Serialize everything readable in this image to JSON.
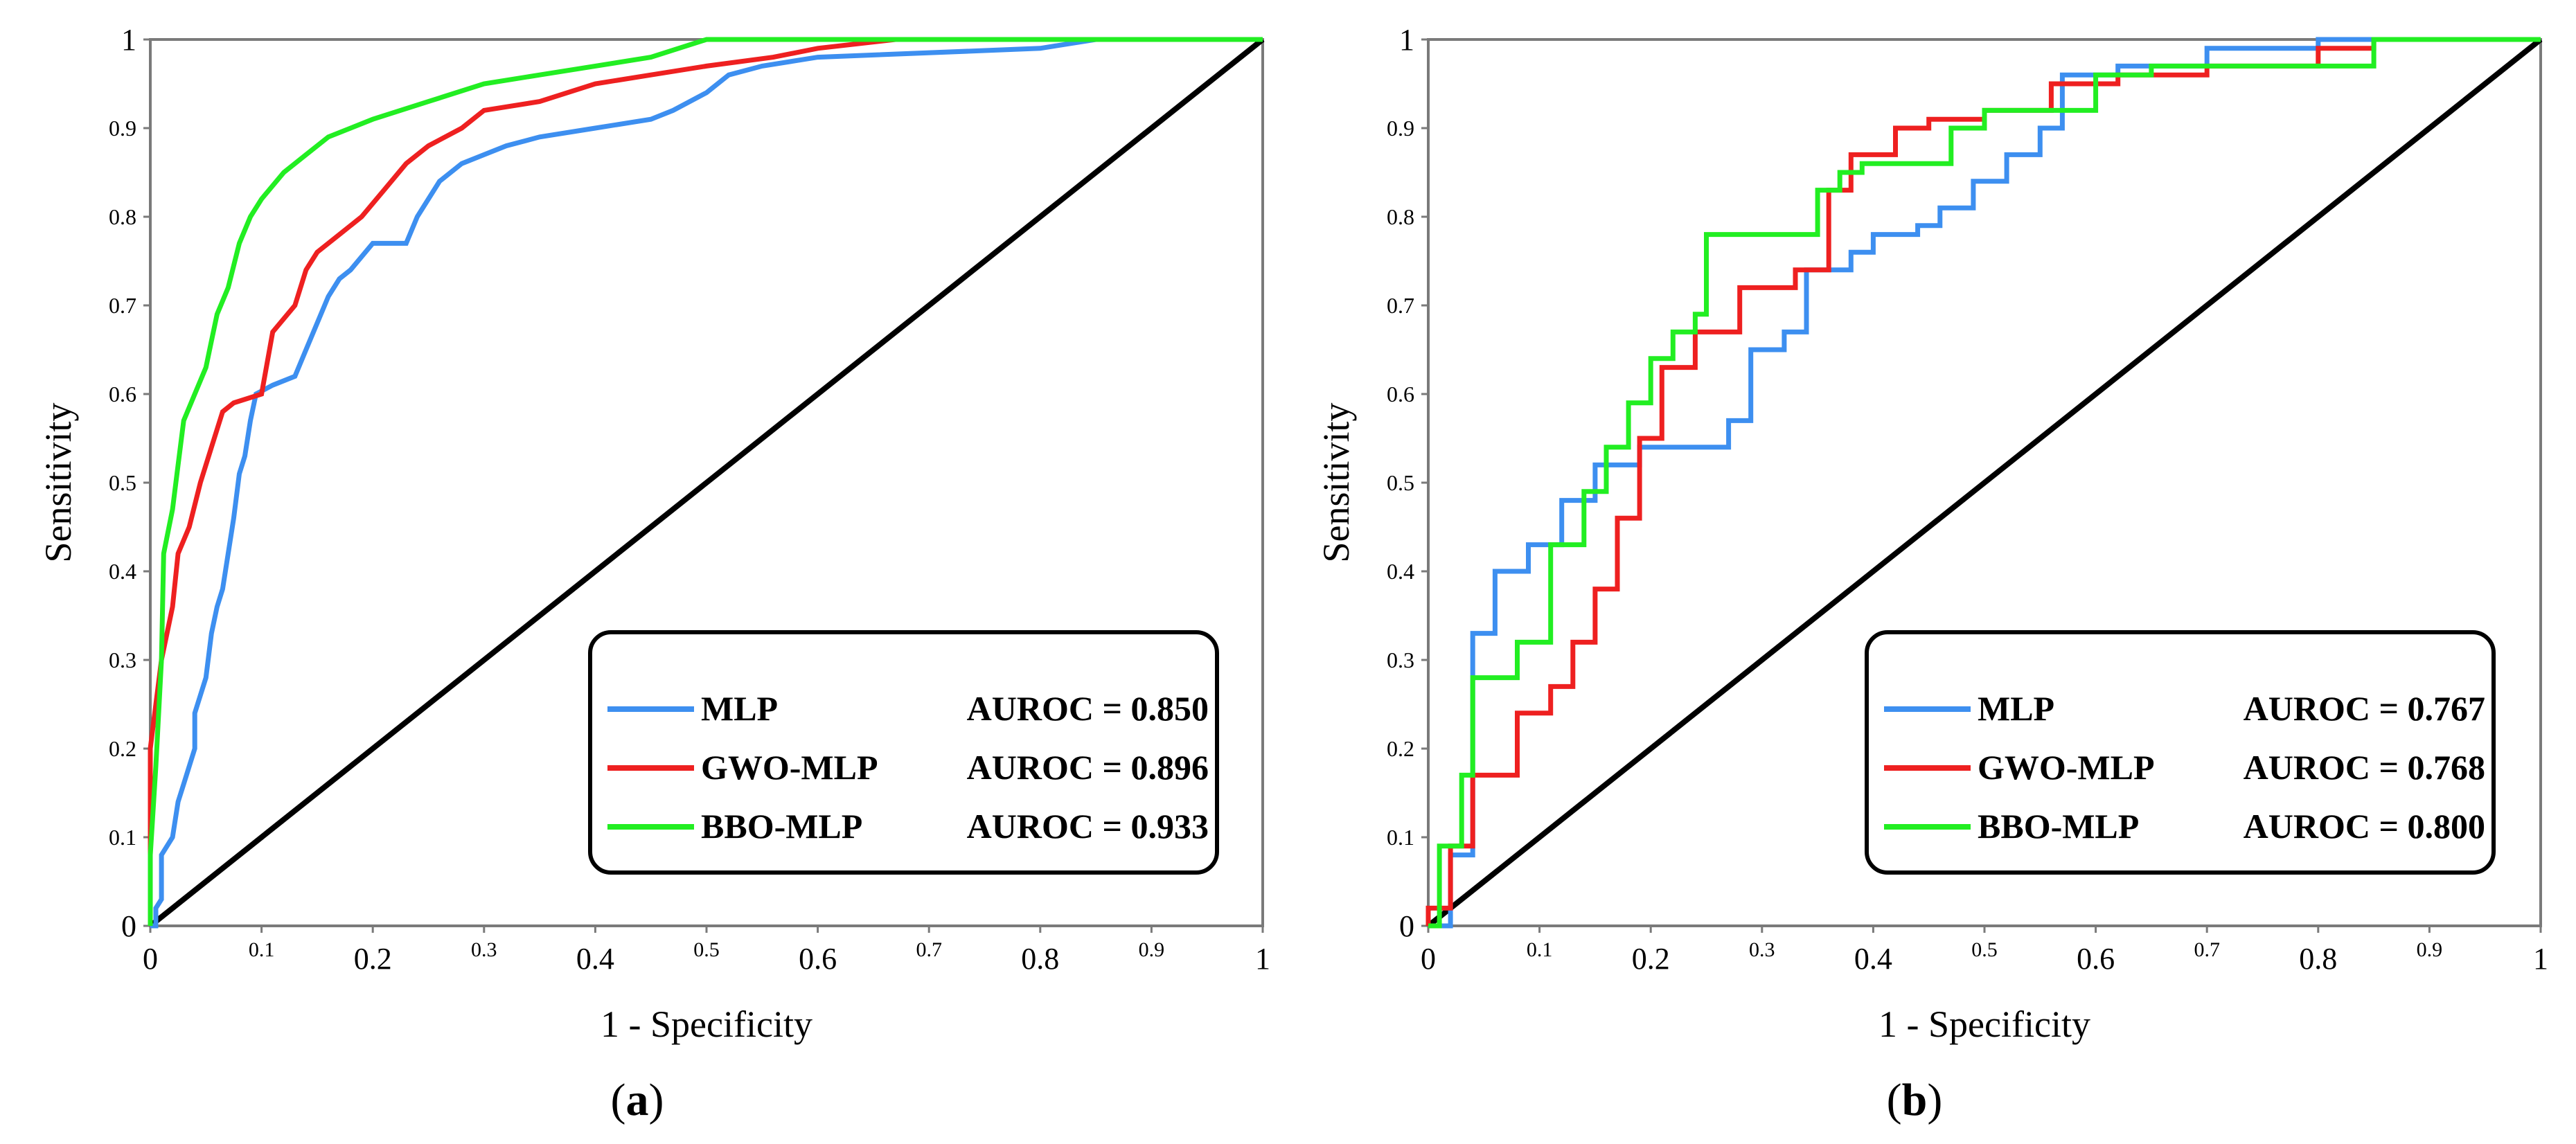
{
  "chart_data": [
    {
      "type": "line",
      "panel_label": "a",
      "xlabel": "1 - Specificity",
      "ylabel": "Sensitivity",
      "xlim": [
        0,
        1
      ],
      "ylim": [
        0,
        1
      ],
      "x_ticks": [
        "0",
        "0.1",
        "0.2",
        "0.3",
        "0.4",
        "0.5",
        "0.6",
        "0.7",
        "0.8",
        "0.9",
        "1"
      ],
      "y_ticks": [
        "0",
        "0.1",
        "0.2",
        "0.3",
        "0.4",
        "0.5",
        "0.6",
        "0.7",
        "0.8",
        "0.9",
        "1"
      ],
      "grid": false,
      "legend_position": "bottom-right",
      "diagonal": {
        "color": "#000000",
        "points": [
          [
            0,
            0
          ],
          [
            1,
            1
          ]
        ]
      },
      "series": [
        {
          "name": "MLP",
          "auroc_label": "AUROC = 0.850",
          "color": "#3d8ff0",
          "points": [
            [
              0,
              0
            ],
            [
              0.005,
              0
            ],
            [
              0.005,
              0.02
            ],
            [
              0.01,
              0.03
            ],
            [
              0.01,
              0.08
            ],
            [
              0.02,
              0.1
            ],
            [
              0.025,
              0.14
            ],
            [
              0.03,
              0.16
            ],
            [
              0.035,
              0.18
            ],
            [
              0.04,
              0.2
            ],
            [
              0.04,
              0.24
            ],
            [
              0.05,
              0.28
            ],
            [
              0.055,
              0.33
            ],
            [
              0.06,
              0.36
            ],
            [
              0.065,
              0.38
            ],
            [
              0.07,
              0.42
            ],
            [
              0.075,
              0.46
            ],
            [
              0.08,
              0.51
            ],
            [
              0.085,
              0.53
            ],
            [
              0.09,
              0.57
            ],
            [
              0.095,
              0.6
            ],
            [
              0.11,
              0.61
            ],
            [
              0.13,
              0.62
            ],
            [
              0.14,
              0.65
            ],
            [
              0.15,
              0.68
            ],
            [
              0.16,
              0.71
            ],
            [
              0.17,
              0.73
            ],
            [
              0.18,
              0.74
            ],
            [
              0.2,
              0.77
            ],
            [
              0.23,
              0.77
            ],
            [
              0.24,
              0.8
            ],
            [
              0.25,
              0.82
            ],
            [
              0.26,
              0.84
            ],
            [
              0.28,
              0.86
            ],
            [
              0.3,
              0.87
            ],
            [
              0.32,
              0.88
            ],
            [
              0.35,
              0.89
            ],
            [
              0.4,
              0.9
            ],
            [
              0.45,
              0.91
            ],
            [
              0.47,
              0.92
            ],
            [
              0.5,
              0.94
            ],
            [
              0.52,
              0.96
            ],
            [
              0.55,
              0.97
            ],
            [
              0.6,
              0.98
            ],
            [
              0.8,
              0.99
            ],
            [
              0.85,
              1
            ]
          ]
        },
        {
          "name": "GWO-MLP",
          "auroc_label": "AUROC = 0.896",
          "color": "#ee2020",
          "points": [
            [
              0,
              0
            ],
            [
              0,
              0.2
            ],
            [
              0.005,
              0.25
            ],
            [
              0.01,
              0.3
            ],
            [
              0.02,
              0.36
            ],
            [
              0.025,
              0.42
            ],
            [
              0.035,
              0.45
            ],
            [
              0.045,
              0.5
            ],
            [
              0.055,
              0.54
            ],
            [
              0.065,
              0.58
            ],
            [
              0.075,
              0.59
            ],
            [
              0.1,
              0.6
            ],
            [
              0.11,
              0.67
            ],
            [
              0.13,
              0.7
            ],
            [
              0.14,
              0.74
            ],
            [
              0.15,
              0.76
            ],
            [
              0.17,
              0.78
            ],
            [
              0.19,
              0.8
            ],
            [
              0.21,
              0.83
            ],
            [
              0.23,
              0.86
            ],
            [
              0.25,
              0.88
            ],
            [
              0.28,
              0.9
            ],
            [
              0.3,
              0.92
            ],
            [
              0.35,
              0.93
            ],
            [
              0.4,
              0.95
            ],
            [
              0.45,
              0.96
            ],
            [
              0.5,
              0.97
            ],
            [
              0.56,
              0.98
            ],
            [
              0.6,
              0.99
            ],
            [
              0.67,
              1
            ]
          ]
        },
        {
          "name": "BBO-MLP",
          "auroc_label": "AUROC = 0.933",
          "color": "#22ee22",
          "points": [
            [
              0,
              0
            ],
            [
              0,
              0.08
            ],
            [
              0.005,
              0.18
            ],
            [
              0.01,
              0.3
            ],
            [
              0.012,
              0.42
            ],
            [
              0.02,
              0.47
            ],
            [
              0.025,
              0.52
            ],
            [
              0.03,
              0.57
            ],
            [
              0.04,
              0.6
            ],
            [
              0.05,
              0.63
            ],
            [
              0.055,
              0.66
            ],
            [
              0.06,
              0.69
            ],
            [
              0.07,
              0.72
            ],
            [
              0.08,
              0.77
            ],
            [
              0.09,
              0.8
            ],
            [
              0.1,
              0.82
            ],
            [
              0.12,
              0.85
            ],
            [
              0.14,
              0.87
            ],
            [
              0.16,
              0.89
            ],
            [
              0.2,
              0.91
            ],
            [
              0.25,
              0.93
            ],
            [
              0.3,
              0.95
            ],
            [
              0.35,
              0.96
            ],
            [
              0.4,
              0.97
            ],
            [
              0.45,
              0.98
            ],
            [
              0.5,
              1
            ],
            [
              1,
              1
            ]
          ]
        }
      ]
    },
    {
      "type": "line",
      "panel_label": "b",
      "xlabel": "1 - Specificity",
      "ylabel": "Sensitivity",
      "xlim": [
        0,
        1
      ],
      "ylim": [
        0,
        1
      ],
      "x_ticks": [
        "0",
        "0.1",
        "0.2",
        "0.3",
        "0.4",
        "0.5",
        "0.6",
        "0.7",
        "0.8",
        "0.9",
        "1"
      ],
      "y_ticks": [
        "0",
        "0.1",
        "0.2",
        "0.3",
        "0.4",
        "0.5",
        "0.6",
        "0.7",
        "0.8",
        "0.9",
        "1"
      ],
      "grid": false,
      "legend_position": "bottom-right",
      "diagonal": {
        "color": "#000000",
        "points": [
          [
            0,
            0
          ],
          [
            1,
            1
          ]
        ]
      },
      "series": [
        {
          "name": "MLP",
          "auroc_label": "AUROC = 0.767",
          "color": "#3d8ff0",
          "points": [
            [
              0,
              0
            ],
            [
              0.02,
              0
            ],
            [
              0.02,
              0.08
            ],
            [
              0.04,
              0.08
            ],
            [
              0.04,
              0.33
            ],
            [
              0.06,
              0.33
            ],
            [
              0.06,
              0.4
            ],
            [
              0.09,
              0.4
            ],
            [
              0.09,
              0.43
            ],
            [
              0.12,
              0.43
            ],
            [
              0.12,
              0.48
            ],
            [
              0.15,
              0.48
            ],
            [
              0.15,
              0.52
            ],
            [
              0.19,
              0.52
            ],
            [
              0.19,
              0.54
            ],
            [
              0.27,
              0.54
            ],
            [
              0.27,
              0.57
            ],
            [
              0.29,
              0.57
            ],
            [
              0.29,
              0.65
            ],
            [
              0.32,
              0.65
            ],
            [
              0.32,
              0.67
            ],
            [
              0.34,
              0.67
            ],
            [
              0.34,
              0.74
            ],
            [
              0.38,
              0.74
            ],
            [
              0.38,
              0.76
            ],
            [
              0.4,
              0.76
            ],
            [
              0.4,
              0.78
            ],
            [
              0.44,
              0.78
            ],
            [
              0.44,
              0.79
            ],
            [
              0.46,
              0.79
            ],
            [
              0.46,
              0.81
            ],
            [
              0.49,
              0.81
            ],
            [
              0.49,
              0.84
            ],
            [
              0.52,
              0.84
            ],
            [
              0.52,
              0.87
            ],
            [
              0.55,
              0.87
            ],
            [
              0.55,
              0.9
            ],
            [
              0.57,
              0.9
            ],
            [
              0.57,
              0.96
            ],
            [
              0.62,
              0.96
            ],
            [
              0.62,
              0.97
            ],
            [
              0.7,
              0.97
            ],
            [
              0.7,
              0.99
            ],
            [
              0.8,
              0.99
            ],
            [
              0.8,
              1
            ],
            [
              1,
              1
            ]
          ]
        },
        {
          "name": "GWO-MLP",
          "auroc_label": "AUROC = 0.768",
          "color": "#ee2020",
          "points": [
            [
              0,
              0
            ],
            [
              0,
              0.02
            ],
            [
              0.02,
              0.02
            ],
            [
              0.02,
              0.09
            ],
            [
              0.04,
              0.09
            ],
            [
              0.04,
              0.17
            ],
            [
              0.08,
              0.17
            ],
            [
              0.08,
              0.24
            ],
            [
              0.11,
              0.24
            ],
            [
              0.11,
              0.27
            ],
            [
              0.13,
              0.27
            ],
            [
              0.13,
              0.32
            ],
            [
              0.15,
              0.32
            ],
            [
              0.15,
              0.38
            ],
            [
              0.17,
              0.38
            ],
            [
              0.17,
              0.46
            ],
            [
              0.19,
              0.46
            ],
            [
              0.19,
              0.55
            ],
            [
              0.21,
              0.55
            ],
            [
              0.21,
              0.63
            ],
            [
              0.24,
              0.63
            ],
            [
              0.24,
              0.67
            ],
            [
              0.28,
              0.67
            ],
            [
              0.28,
              0.72
            ],
            [
              0.33,
              0.72
            ],
            [
              0.33,
              0.74
            ],
            [
              0.36,
              0.74
            ],
            [
              0.36,
              0.83
            ],
            [
              0.38,
              0.83
            ],
            [
              0.38,
              0.87
            ],
            [
              0.42,
              0.87
            ],
            [
              0.42,
              0.9
            ],
            [
              0.45,
              0.9
            ],
            [
              0.45,
              0.91
            ],
            [
              0.5,
              0.91
            ],
            [
              0.5,
              0.92
            ],
            [
              0.56,
              0.92
            ],
            [
              0.56,
              0.95
            ],
            [
              0.62,
              0.95
            ],
            [
              0.62,
              0.96
            ],
            [
              0.7,
              0.96
            ],
            [
              0.7,
              0.97
            ],
            [
              0.8,
              0.97
            ],
            [
              0.8,
              0.99
            ],
            [
              0.85,
              0.99
            ],
            [
              0.85,
              1
            ],
            [
              1,
              1
            ]
          ]
        },
        {
          "name": "BBO-MLP",
          "auroc_label": "AUROC = 0.800",
          "color": "#22ee22",
          "points": [
            [
              0,
              0
            ],
            [
              0.01,
              0
            ],
            [
              0.01,
              0.09
            ],
            [
              0.03,
              0.09
            ],
            [
              0.03,
              0.17
            ],
            [
              0.04,
              0.17
            ],
            [
              0.04,
              0.28
            ],
            [
              0.08,
              0.28
            ],
            [
              0.08,
              0.32
            ],
            [
              0.11,
              0.32
            ],
            [
              0.11,
              0.43
            ],
            [
              0.14,
              0.43
            ],
            [
              0.14,
              0.49
            ],
            [
              0.16,
              0.49
            ],
            [
              0.16,
              0.54
            ],
            [
              0.18,
              0.54
            ],
            [
              0.18,
              0.59
            ],
            [
              0.2,
              0.59
            ],
            [
              0.2,
              0.64
            ],
            [
              0.22,
              0.64
            ],
            [
              0.22,
              0.67
            ],
            [
              0.24,
              0.67
            ],
            [
              0.24,
              0.69
            ],
            [
              0.25,
              0.69
            ],
            [
              0.25,
              0.78
            ],
            [
              0.35,
              0.78
            ],
            [
              0.35,
              0.83
            ],
            [
              0.37,
              0.83
            ],
            [
              0.37,
              0.85
            ],
            [
              0.39,
              0.85
            ],
            [
              0.39,
              0.86
            ],
            [
              0.47,
              0.86
            ],
            [
              0.47,
              0.9
            ],
            [
              0.5,
              0.9
            ],
            [
              0.5,
              0.92
            ],
            [
              0.6,
              0.92
            ],
            [
              0.6,
              0.96
            ],
            [
              0.65,
              0.96
            ],
            [
              0.65,
              0.97
            ],
            [
              0.85,
              0.97
            ],
            [
              0.85,
              1
            ],
            [
              1,
              1
            ]
          ]
        }
      ]
    }
  ]
}
